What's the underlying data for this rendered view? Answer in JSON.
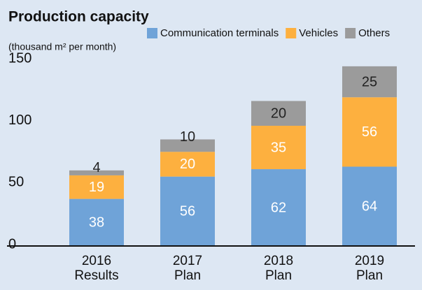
{
  "chart_data": {
    "type": "stacked_bar",
    "title": "Production capacity",
    "y_label": "(thousand m² per month)",
    "categories": [
      "2016 Results",
      "2017 Plan",
      "2018 Plan",
      "2019 Plan"
    ],
    "series": [
      {
        "name": "Communication terminals",
        "color": "#6fa3d8",
        "values": [
          38,
          56,
          62,
          64
        ]
      },
      {
        "name": "Vehicles",
        "color": "#fdb03f",
        "values": [
          19,
          20,
          35,
          56
        ]
      },
      {
        "name": "Others",
        "color": "#9b9b9b",
        "values": [
          4,
          10,
          20,
          25
        ]
      }
    ],
    "ylim": [
      0,
      150
    ],
    "yticks": [
      0,
      50,
      100,
      150
    ],
    "grid": false
  }
}
